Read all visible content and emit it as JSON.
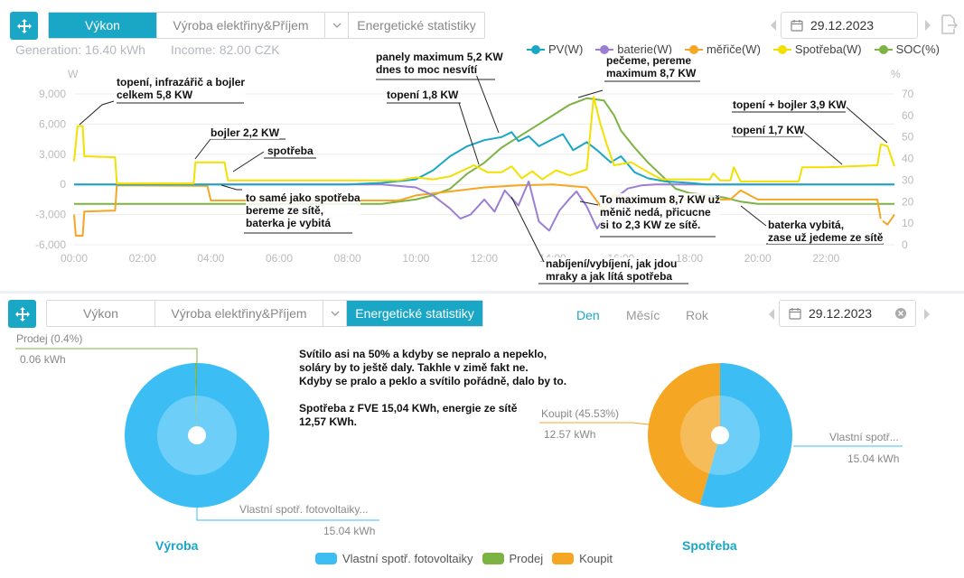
{
  "top": {
    "tabs": [
      {
        "label": "Výkon",
        "active": true
      },
      {
        "label": "Výroba elektřiny&Příjem",
        "active": false
      },
      {
        "label": "Energetické statistiky",
        "active": false
      }
    ],
    "date": "29.12.2023",
    "generation": "Generation: 16.40 kWh",
    "income": "Income: 82.00 CZK"
  },
  "bottom": {
    "tabs": [
      {
        "label": "Výkon",
        "active": false
      },
      {
        "label": "Výroba elektřiny&Příjem",
        "active": false
      },
      {
        "label": "Energetické statistiky",
        "active": true
      }
    ],
    "periods": [
      "Den",
      "Měsíc",
      "Rok"
    ],
    "date": "29.12.2023",
    "note": [
      "Svítilo asi na 50% a kdyby se nepralo a nepeklo,",
      "soláry by to ještě daly. Takhle v zimě fakt ne.",
      "Kdyby se pralo a peklo a svítilo pořádně, dalo by to.",
      "",
      "Spotřeba z FVE 15,04 KWh, energie ze sítě",
      "12,57 KWh."
    ],
    "pie_left": {
      "title": "Výroba",
      "prodej_label": "Prodej (0.4%)",
      "prodej_value": "0.06 kWh",
      "own_label": "Vlastní spotř. fotovoltaiky...",
      "own_value": "15.04 kWh"
    },
    "pie_right": {
      "title": "Spotřeba",
      "koupit_label": "Koupit (45.53%)",
      "koupit_value": "12.57 kWh",
      "own_label": "Vlastní spotř...",
      "own_value": "15.04 kWh"
    },
    "legend": [
      {
        "label": "Vlastní spotř. fotovoltaiky",
        "color": "#3cbef5"
      },
      {
        "label": "Prodej",
        "color": "#7cb342"
      },
      {
        "label": "Koupit",
        "color": "#f5a623"
      }
    ]
  },
  "chart_data": [
    {
      "type": "line",
      "title": "",
      "xlabel": "",
      "ylabel": "W",
      "y2label": "%",
      "ylim": [
        -6000,
        9000
      ],
      "y2lim": [
        0,
        70
      ],
      "yticks": [
        "9,000",
        "6,000",
        "3,000",
        "0",
        "-3,000",
        "-6,000"
      ],
      "y2ticks": [
        "70",
        "60",
        "50",
        "40",
        "30",
        "20",
        "10",
        "0"
      ],
      "xticks": [
        "00:00",
        "02:00",
        "04:00",
        "06:00",
        "08:00",
        "10:00",
        "12:00",
        "14:00",
        "16:00",
        "18:00",
        "20:00",
        "22:00"
      ],
      "series": [
        {
          "name": "PV(W)",
          "color": "#1aa7c6",
          "axis": "left",
          "points": [
            [
              0,
              0
            ],
            [
              8,
              0
            ],
            [
              9,
              150
            ],
            [
              10,
              500
            ],
            [
              10.5,
              1400
            ],
            [
              11,
              2800
            ],
            [
              11.5,
              3800
            ],
            [
              12,
              4400
            ],
            [
              12.5,
              4700
            ],
            [
              12.8,
              5200
            ],
            [
              13,
              4300
            ],
            [
              13.3,
              4800
            ],
            [
              13.6,
              3800
            ],
            [
              14,
              4500
            ],
            [
              14.3,
              5000
            ],
            [
              14.6,
              3400
            ],
            [
              15,
              4200
            ],
            [
              15.3,
              3400
            ],
            [
              15.7,
              2200
            ],
            [
              16,
              2800
            ],
            [
              16.4,
              1200
            ],
            [
              16.8,
              600
            ],
            [
              17.3,
              300
            ],
            [
              18,
              150
            ],
            [
              18.5,
              0
            ],
            [
              24,
              0
            ]
          ]
        },
        {
          "name": "baterie(W)",
          "color": "#9b7fd4",
          "axis": "left",
          "points": [
            [
              0,
              0
            ],
            [
              9,
              0
            ],
            [
              10,
              -300
            ],
            [
              10.5,
              -1100
            ],
            [
              11,
              -2400
            ],
            [
              11.3,
              -3400
            ],
            [
              11.6,
              -3000
            ],
            [
              12,
              -1500
            ],
            [
              12.3,
              -2700
            ],
            [
              12.6,
              -600
            ],
            [
              13,
              -2100
            ],
            [
              13.3,
              300
            ],
            [
              13.6,
              -3700
            ],
            [
              13.9,
              -4600
            ],
            [
              14.2,
              -2600
            ],
            [
              14.5,
              -1400
            ],
            [
              14.7,
              -700
            ],
            [
              15,
              -2200
            ],
            [
              15.3,
              -4400
            ],
            [
              15.6,
              -2800
            ],
            [
              15.9,
              -1200
            ],
            [
              16.2,
              -400
            ],
            [
              16.6,
              -100
            ],
            [
              17,
              0
            ],
            [
              24,
              0
            ]
          ]
        },
        {
          "name": "měřiče(W)",
          "color": "#f5a623",
          "axis": "left",
          "points": [
            [
              0,
              -3000
            ],
            [
              0.05,
              -5100
            ],
            [
              0.25,
              -5100
            ],
            [
              0.3,
              -2700
            ],
            [
              1.2,
              -2600
            ],
            [
              1.25,
              -100
            ],
            [
              3.9,
              -150
            ],
            [
              4,
              -1600
            ],
            [
              9.5,
              -1600
            ],
            [
              10,
              -1100
            ],
            [
              11,
              -700
            ],
            [
              12,
              -300
            ],
            [
              13,
              -100
            ],
            [
              14,
              0
            ],
            [
              15,
              -300
            ],
            [
              15.5,
              -2600
            ],
            [
              15.8,
              -1000
            ],
            [
              16.3,
              -1500
            ],
            [
              18,
              -1500
            ],
            [
              19.2,
              -1500
            ],
            [
              19.5,
              -600
            ],
            [
              20,
              -1500
            ],
            [
              23.5,
              -1500
            ],
            [
              23.6,
              -3500
            ],
            [
              23.8,
              -4000
            ],
            [
              24,
              -3000
            ]
          ]
        },
        {
          "name": "Spotřeba(W)",
          "color": "#f3e000",
          "axis": "left",
          "points": [
            [
              0,
              2300
            ],
            [
              0.1,
              5800
            ],
            [
              0.25,
              5800
            ],
            [
              0.3,
              2800
            ],
            [
              1.2,
              2700
            ],
            [
              1.25,
              100
            ],
            [
              3.5,
              100
            ],
            [
              3.55,
              2200
            ],
            [
              4.4,
              2200
            ],
            [
              4.5,
              400
            ],
            [
              9.5,
              400
            ],
            [
              10,
              700
            ],
            [
              10.5,
              500
            ],
            [
              11,
              800
            ],
            [
              11.7,
              1900
            ],
            [
              12.1,
              1200
            ],
            [
              12.5,
              1200
            ],
            [
              12.8,
              1800
            ],
            [
              13.1,
              600
            ],
            [
              13.4,
              1300
            ],
            [
              13.7,
              500
            ],
            [
              14.1,
              1400
            ],
            [
              14.5,
              900
            ],
            [
              15,
              1500
            ],
            [
              15.2,
              8700
            ],
            [
              15.4,
              6000
            ],
            [
              15.6,
              3800
            ],
            [
              15.8,
              1900
            ],
            [
              16.3,
              2200
            ],
            [
              16.8,
              1200
            ],
            [
              17.2,
              500
            ],
            [
              18,
              500
            ],
            [
              18.6,
              500
            ],
            [
              18.7,
              1100
            ],
            [
              18.9,
              400
            ],
            [
              19.2,
              400
            ],
            [
              19.3,
              1700
            ],
            [
              19.5,
              300
            ],
            [
              21.2,
              300
            ],
            [
              21.3,
              1700
            ],
            [
              22,
              1700
            ],
            [
              23.5,
              1900
            ],
            [
              23.6,
              4000
            ],
            [
              23.8,
              3800
            ],
            [
              24,
              1800
            ]
          ]
        },
        {
          "name": "SOC(%)",
          "color": "#7cb342",
          "axis": "right",
          "points": [
            [
              0,
              19
            ],
            [
              9,
              19
            ],
            [
              9.5,
              20
            ],
            [
              10,
              21
            ],
            [
              10.5,
              23
            ],
            [
              11,
              26
            ],
            [
              11.5,
              33
            ],
            [
              12,
              38
            ],
            [
              12.5,
              45
            ],
            [
              13,
              50
            ],
            [
              13.5,
              55
            ],
            [
              14,
              60
            ],
            [
              14.5,
              65
            ],
            [
              15,
              68
            ],
            [
              15.5,
              67
            ],
            [
              15.8,
              60
            ],
            [
              16,
              53
            ],
            [
              16.4,
              45
            ],
            [
              16.8,
              38
            ],
            [
              17.2,
              32
            ],
            [
              17.6,
              26
            ],
            [
              18,
              24
            ],
            [
              18.5,
              23
            ],
            [
              19,
              22
            ],
            [
              19.5,
              20
            ],
            [
              20,
              19
            ],
            [
              24,
              19
            ]
          ]
        }
      ]
    },
    {
      "type": "pie",
      "title": "Výroba",
      "labels": [
        "Vlastní spotř. fotovoltaiky",
        "Prodej"
      ],
      "values": [
        15.04,
        0.06
      ],
      "percent": [
        99.6,
        0.4
      ]
    },
    {
      "type": "pie",
      "title": "Spotřeba",
      "labels": [
        "Vlastní spotř. fotovoltaiky",
        "Koupit"
      ],
      "values": [
        15.04,
        12.57
      ],
      "percent": [
        54.47,
        45.53
      ]
    }
  ],
  "annotations": [
    {
      "lines": [
        "topení, infrazářič a bojler",
        "celkem 5,8 KW"
      ]
    },
    {
      "lines": [
        "bojler 2,2 KW"
      ]
    },
    {
      "lines": [
        "spotřeba"
      ]
    },
    {
      "lines": [
        "to samé jako spotřeba",
        "bereme ze sítě,",
        "baterka je vybitá"
      ]
    },
    {
      "lines": [
        "panely maximum 5,2 KW",
        "dnes to moc nesvítí"
      ]
    },
    {
      "lines": [
        "topení 1,8 KW"
      ]
    },
    {
      "lines": [
        "pečeme, pereme",
        "maximum 8,7 KW"
      ]
    },
    {
      "lines": [
        "topení + bojler 3,9 KW"
      ]
    },
    {
      "lines": [
        "topení 1,7 KW"
      ]
    },
    {
      "lines": [
        "To maximum 8,7 KW už",
        "měnič nedá, přicucne",
        "si to 2,3 KW ze sítě."
      ]
    },
    {
      "lines": [
        "baterka vybitá,",
        "zase už jedeme ze sítě"
      ]
    },
    {
      "lines": [
        "nabíjení/vybíjení, jak jdou",
        "mraky a jak lítá spotřeba"
      ]
    }
  ]
}
